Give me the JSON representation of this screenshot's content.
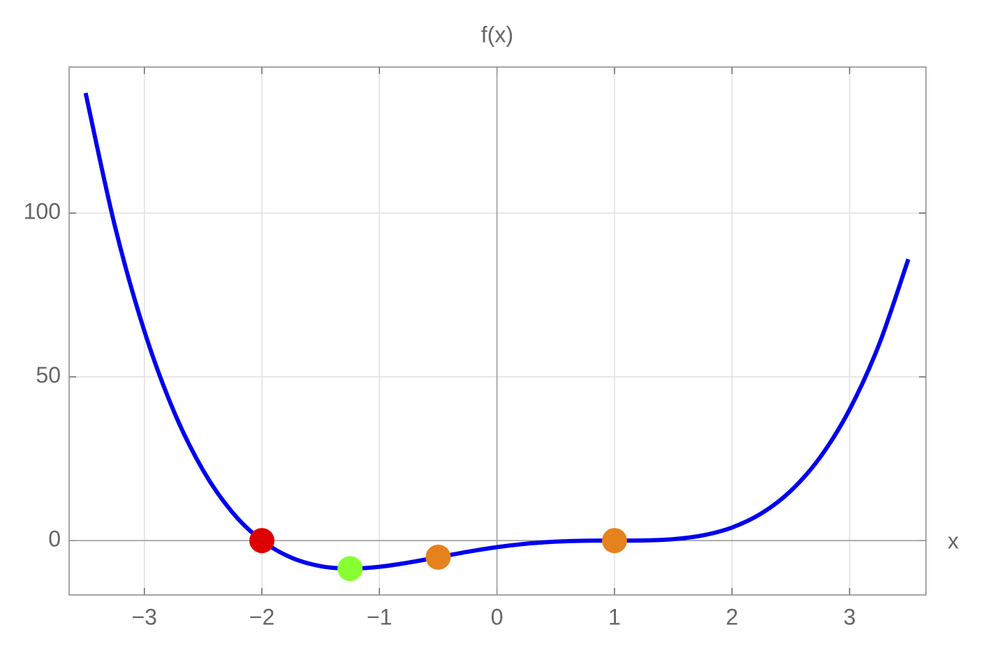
{
  "chart_data": {
    "type": "line",
    "title": "f(x)",
    "x_label": "x",
    "x": [
      -3.5,
      -3.25,
      -3,
      -2.75,
      -2.5,
      -2.25,
      -2,
      -1.75,
      -1.5,
      -1.25,
      -1,
      -0.75,
      -0.5,
      -0.25,
      0,
      0.25,
      0.5,
      0.75,
      1,
      1.25,
      1.5,
      1.75,
      2,
      2.25,
      2.5,
      2.75,
      3,
      3.25,
      3.5
    ],
    "values": [
      136.69,
      95.96,
      64,
      39.55,
      21.44,
      8.58,
      0,
      -5.2,
      -7.81,
      -8.54,
      -8,
      -6.7,
      -5.06,
      -3.42,
      -2,
      -0.95,
      -0.31,
      -0.04,
      0,
      0.05,
      0.44,
      1.58,
      4,
      8.3,
      15.19,
      25.46,
      40,
      59.8,
      85.94
    ],
    "color": "#0000ee",
    "points": {
      "x": [
        -2,
        -1.25,
        -0.5,
        1
      ],
      "values": [
        0,
        -8.54,
        -5.06,
        0
      ],
      "colors": [
        "#dd0000",
        "#88ff33",
        "#e6821e",
        "#e6821e"
      ]
    },
    "xlim": [
      -3.64,
      3.65
    ],
    "ylim": [
      -16.6,
      144.6
    ],
    "xticks": [
      {
        "value": -3,
        "label": "−3"
      },
      {
        "value": -2,
        "label": "−2"
      },
      {
        "value": -1,
        "label": "−1"
      },
      0,
      1,
      2,
      3
    ],
    "yticks": [
      0,
      50,
      100
    ],
    "grid": true
  }
}
